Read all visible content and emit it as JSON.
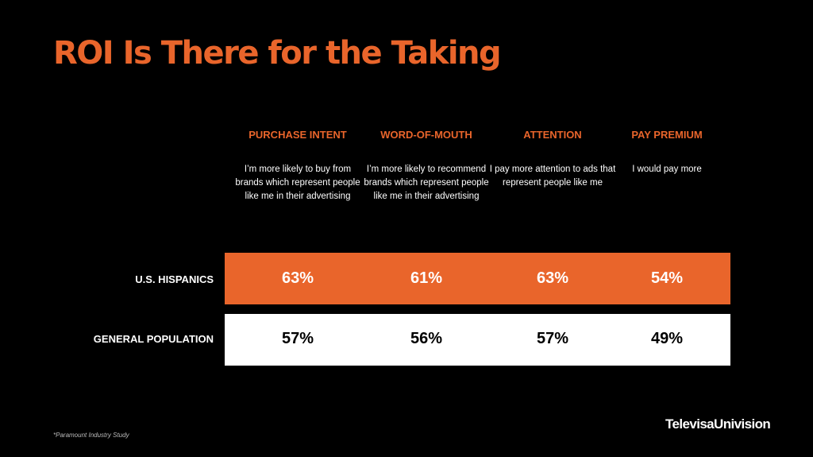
{
  "title": "ROI Is There for the Taking",
  "columns": [
    {
      "heading": "PURCHASE INTENT",
      "description": "I’m more likely to buy from brands which represent people like me in their advertising"
    },
    {
      "heading": "WORD-OF-MOUTH",
      "description": "I’m more likely to recommend brands which represent people like me in their advertising"
    },
    {
      "heading": "ATTENTION",
      "description": "I pay more attention to ads that represent people like me"
    },
    {
      "heading": "PAY PREMIUM",
      "description": "I would pay more"
    }
  ],
  "rows": [
    {
      "label": "U.S. HISPANICS",
      "values": [
        "63%",
        "61%",
        "63%",
        "54%"
      ]
    },
    {
      "label": "GENERAL POPULATION",
      "values": [
        "57%",
        "56%",
        "57%",
        "49%"
      ]
    }
  ],
  "footnote": "*Paramount Industry Study",
  "logo_text": "TelevisaUnivision",
  "colors": {
    "accent": "#e9652b",
    "background": "#000000",
    "row_general_bg": "#ffffff"
  }
}
